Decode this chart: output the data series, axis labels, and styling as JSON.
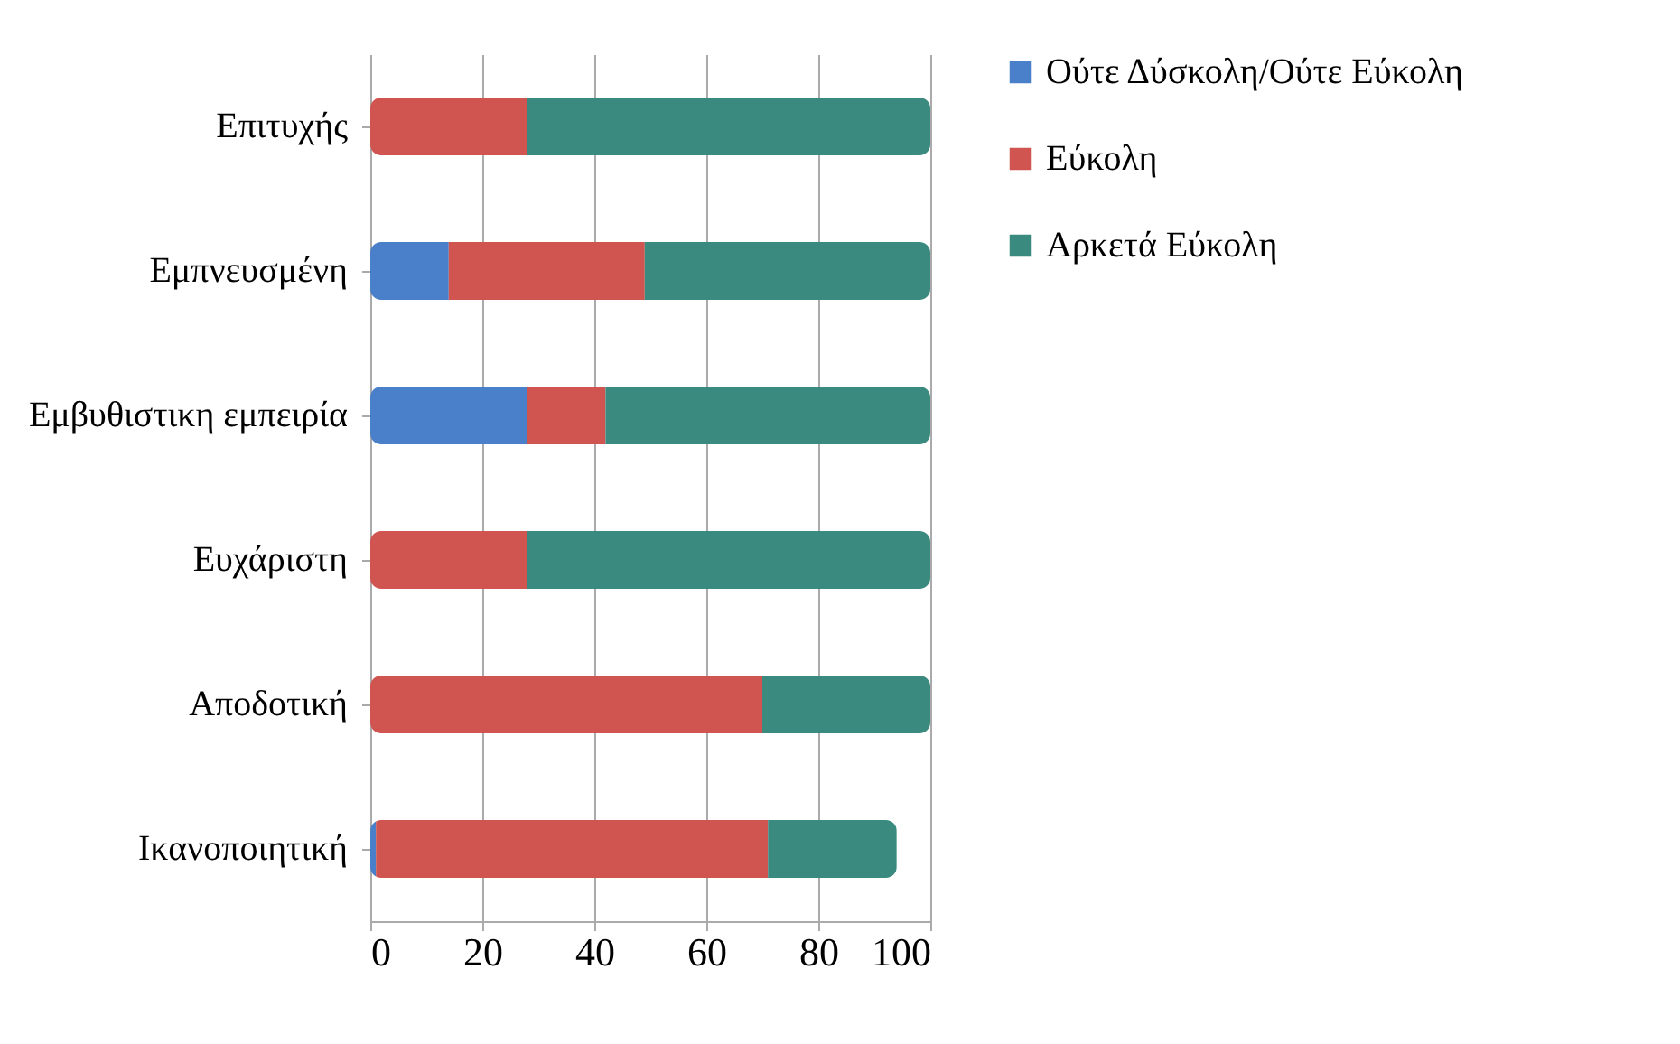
{
  "chart_data": {
    "type": "bar",
    "orientation": "horizontal",
    "stacked": true,
    "categories": [
      "Επιτυχής",
      "Εμπνευσμένη",
      "Εμβυθιστικη  εμπειρία",
      "Ευχάριστη",
      "Αποδοτική",
      "Ικανοποιητική"
    ],
    "series": [
      {
        "name": "Ούτε  Δύσκολη/Ούτε Εύκολη",
        "color": "#4a7fc9",
        "values": [
          0,
          14,
          28,
          0,
          0,
          1
        ]
      },
      {
        "name": "Εύκολη",
        "color": "#d05450",
        "values": [
          28,
          35,
          14,
          28,
          70,
          70
        ]
      },
      {
        "name": "Αρκετά  Εύκολη",
        "color": "#3b8a80",
        "values": [
          72,
          51,
          58,
          72,
          30,
          23
        ]
      }
    ],
    "xlim": [
      0,
      100
    ],
    "xticks": [
      0,
      20,
      40,
      60,
      80,
      100
    ],
    "grid": "x",
    "legend": "right"
  }
}
